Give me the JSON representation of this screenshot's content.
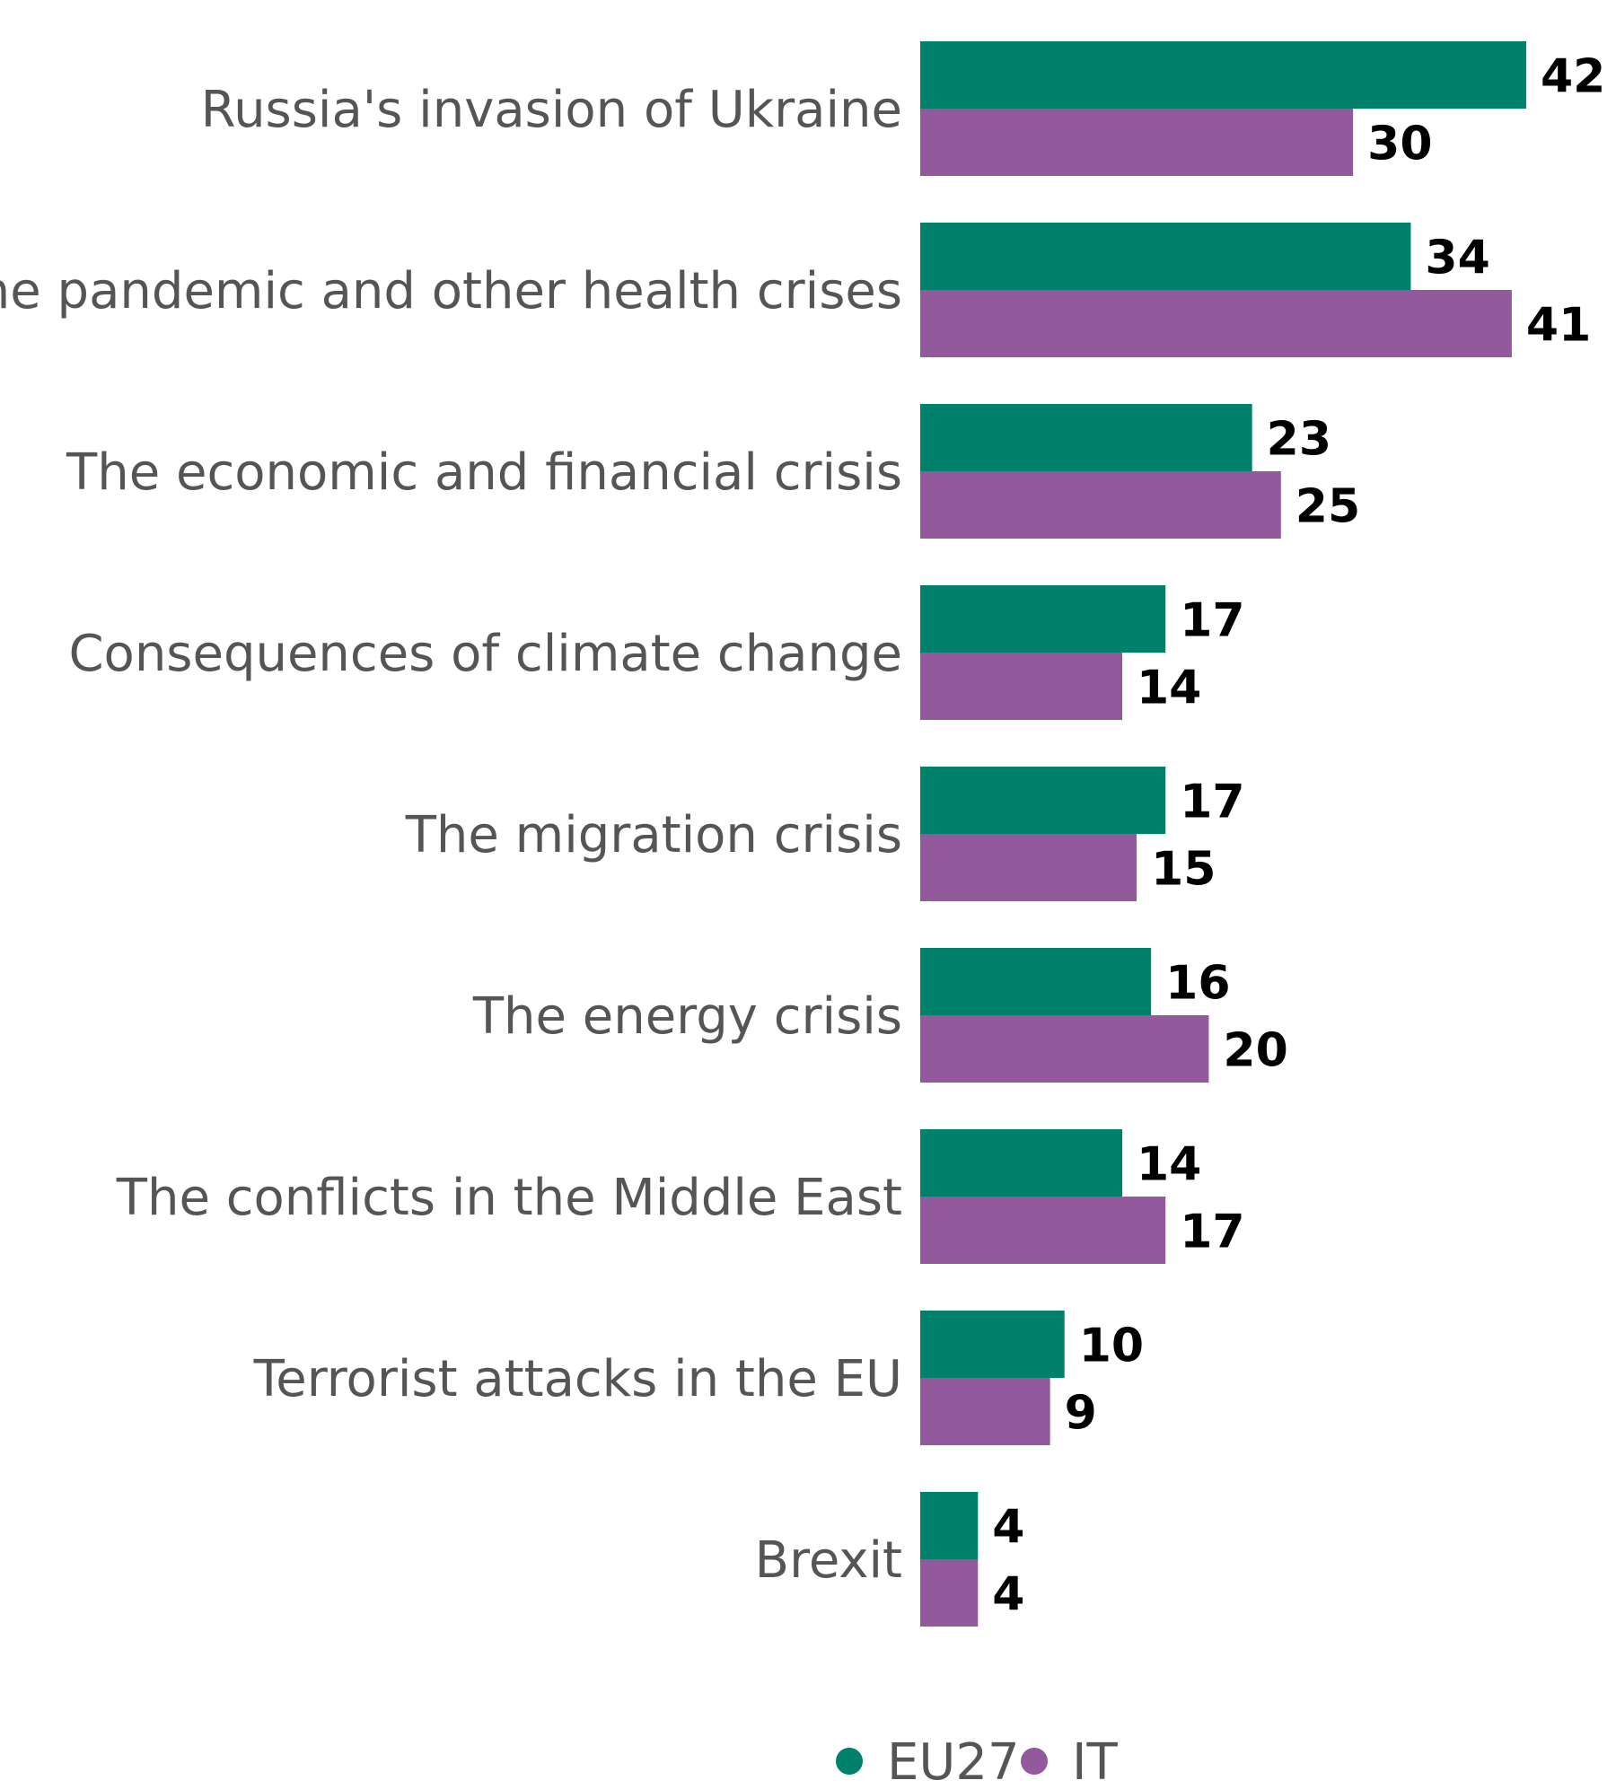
{
  "chart_data": {
    "type": "bar",
    "orientation": "horizontal",
    "categories": [
      "Russia's invasion of Ukraine",
      "The pandemic and other health crises",
      "The economic and financial crisis",
      "Consequences of climate change",
      "The migration crisis",
      "The energy crisis",
      "The conflicts in the Middle East",
      "Terrorist attacks in the EU",
      "Brexit"
    ],
    "series": [
      {
        "name": "EU27",
        "color": "#00816b",
        "values": [
          42,
          34,
          23,
          17,
          17,
          16,
          14,
          10,
          4
        ]
      },
      {
        "name": "IT",
        "color": "#925a9d",
        "values": [
          30,
          41,
          25,
          14,
          15,
          20,
          17,
          9,
          4
        ]
      }
    ],
    "xlim": [
      0,
      42
    ],
    "legend_position": "bottom",
    "grid": false,
    "data_labels": true
  }
}
